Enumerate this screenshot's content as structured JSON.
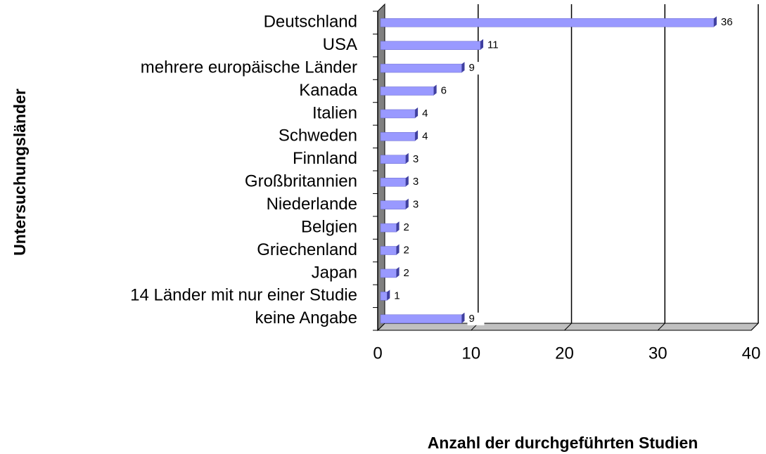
{
  "chart_data": {
    "type": "bar",
    "orientation": "horizontal",
    "categories": [
      "Deutschland",
      "USA",
      "mehrere europäische Länder",
      "Kanada",
      "Italien",
      "Schweden",
      "Finnland",
      "Großbritannien",
      "Niederlande",
      "Belgien",
      "Griechenland",
      "Japan",
      "14 Länder mit nur einer Studie",
      "keine Angabe"
    ],
    "values": [
      36,
      11,
      9,
      6,
      4,
      4,
      3,
      3,
      3,
      2,
      2,
      2,
      1,
      9
    ],
    "color": "#9999ff",
    "xlim": [
      0,
      40
    ],
    "xticks": [
      0,
      10,
      20,
      30,
      40
    ],
    "grid": true,
    "xlabel": "Anzahl der durchgeführten Studien",
    "ylabel": "Untersuchungsländer"
  }
}
